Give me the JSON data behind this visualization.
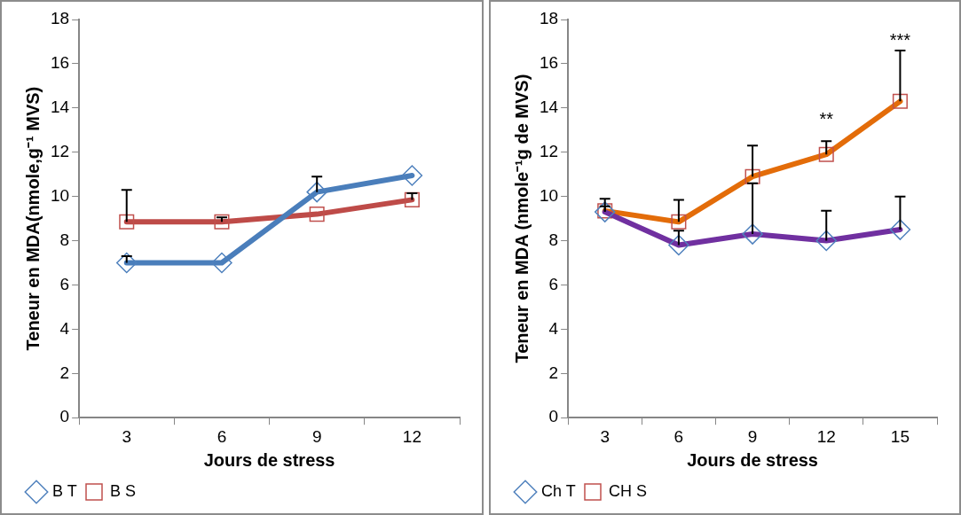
{
  "chart_data": [
    {
      "type": "line",
      "xlabel": "Jours de stress",
      "ylabel": "Teneur en MDA(nmole,g⁻¹ MVS)",
      "categories": [
        "3",
        "6",
        "9",
        "12"
      ],
      "ylim": [
        0,
        18
      ],
      "yticks": [
        0,
        2,
        4,
        6,
        8,
        10,
        12,
        14,
        16,
        18
      ],
      "grid": false,
      "legend": "bottom left",
      "series": [
        {
          "name": "B T",
          "color": "#4a7ebb",
          "marker": "diamond",
          "values": [
            7.0,
            7.0,
            10.2,
            10.95
          ],
          "errors": [
            [
              7.0,
              7.3
            ],
            null,
            [
              10.2,
              10.9
            ],
            null
          ]
        },
        {
          "name": "B S",
          "color": "#be4b48",
          "marker": "square",
          "values": [
            8.85,
            8.85,
            9.2,
            9.85
          ],
          "errors": [
            [
              8.85,
              10.3
            ],
            [
              8.85,
              9.05
            ],
            null,
            [
              9.85,
              10.15
            ]
          ]
        }
      ]
    },
    {
      "type": "line",
      "xlabel": "Jours de stress",
      "ylabel": "Teneur en MDA (nmole⁻¹g de MVS)",
      "categories": [
        "3",
        "6",
        "9",
        "12",
        "15"
      ],
      "ylim": [
        0,
        18
      ],
      "yticks": [
        0,
        2,
        4,
        6,
        8,
        10,
        12,
        14,
        16,
        18
      ],
      "grid": false,
      "legend": "bottom left",
      "annotations": [
        {
          "text": "**",
          "x": "12",
          "y": 12.5
        },
        {
          "text": "***",
          "x": "15",
          "y": 16.6
        }
      ],
      "series": [
        {
          "name": "Ch T",
          "color": "#7030a0",
          "marker": "diamond",
          "values": [
            9.3,
            7.8,
            8.3,
            8.0,
            8.5
          ],
          "errors": [
            [
              9.3,
              9.55
            ],
            [
              7.8,
              8.45
            ],
            [
              8.3,
              10.6
            ],
            [
              8.0,
              9.35
            ],
            [
              8.5,
              10.0
            ]
          ]
        },
        {
          "name": "CH S",
          "color": "#e36c09",
          "marker": "square",
          "values": [
            9.35,
            8.85,
            10.9,
            11.9,
            14.3
          ],
          "errors": [
            [
              9.35,
              9.9
            ],
            [
              8.85,
              9.85
            ],
            [
              10.9,
              12.3
            ],
            [
              11.9,
              12.5
            ],
            [
              14.3,
              16.6
            ]
          ]
        }
      ]
    }
  ]
}
